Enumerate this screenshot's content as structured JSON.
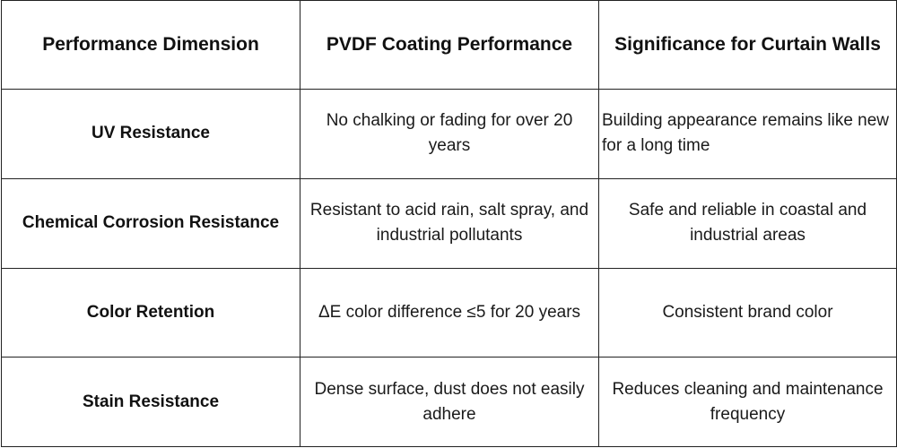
{
  "table": {
    "headers": [
      "Performance Dimension",
      "PVDF Coating Performance",
      "Significance for Curtain Walls"
    ],
    "rows": [
      {
        "dimension": "UV Resistance",
        "performance": "No chalking or fading for over 20 years",
        "significance": "Building appearance remains like new for a long time"
      },
      {
        "dimension": "Chemical Corrosion Resistance",
        "performance": "Resistant to acid rain, salt spray, and industrial pollutants",
        "significance": "Safe and reliable in coastal and industrial areas"
      },
      {
        "dimension": "Color Retention",
        "performance": "ΔE color difference ≤5 for 20 years",
        "significance": "Consistent brand color"
      },
      {
        "dimension": "Stain Resistance",
        "performance": "Dense surface, dust does not easily adhere",
        "significance": "Reduces cleaning and maintenance frequency"
      }
    ]
  }
}
